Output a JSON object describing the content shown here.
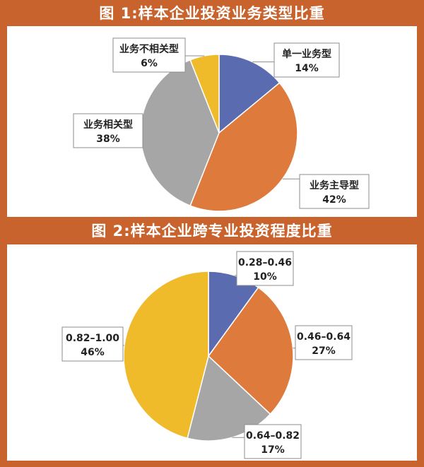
{
  "chart_data": [
    {
      "type": "pie",
      "title": "图 1:样本企业投资业务类型比重",
      "slices": [
        {
          "label": "单一业务型",
          "value": 14,
          "display": "14%",
          "color": "#5b6bb0"
        },
        {
          "label": "业务主导型",
          "value": 42,
          "display": "42%",
          "color": "#de7a3c"
        },
        {
          "label": "业务相关型",
          "value": 38,
          "display": "38%",
          "color": "#a6a6a6"
        },
        {
          "label": "业务不相关型",
          "value": 6,
          "display": "6%",
          "color": "#f0bb2a"
        }
      ]
    },
    {
      "type": "pie",
      "title": "图 2:样本企业跨专业投资程度比重",
      "slices": [
        {
          "label": "0.28–0.46",
          "value": 10,
          "display": "10%",
          "color": "#5b6bb0"
        },
        {
          "label": "0.46–0.64",
          "value": 27,
          "display": "27%",
          "color": "#de7a3c"
        },
        {
          "label": "0.64–0.82",
          "value": 17,
          "display": "17%",
          "color": "#a6a6a6"
        },
        {
          "label": "0.82–1.00",
          "value": 46,
          "display": "46%",
          "color": "#f0bb2a"
        }
      ]
    }
  ]
}
